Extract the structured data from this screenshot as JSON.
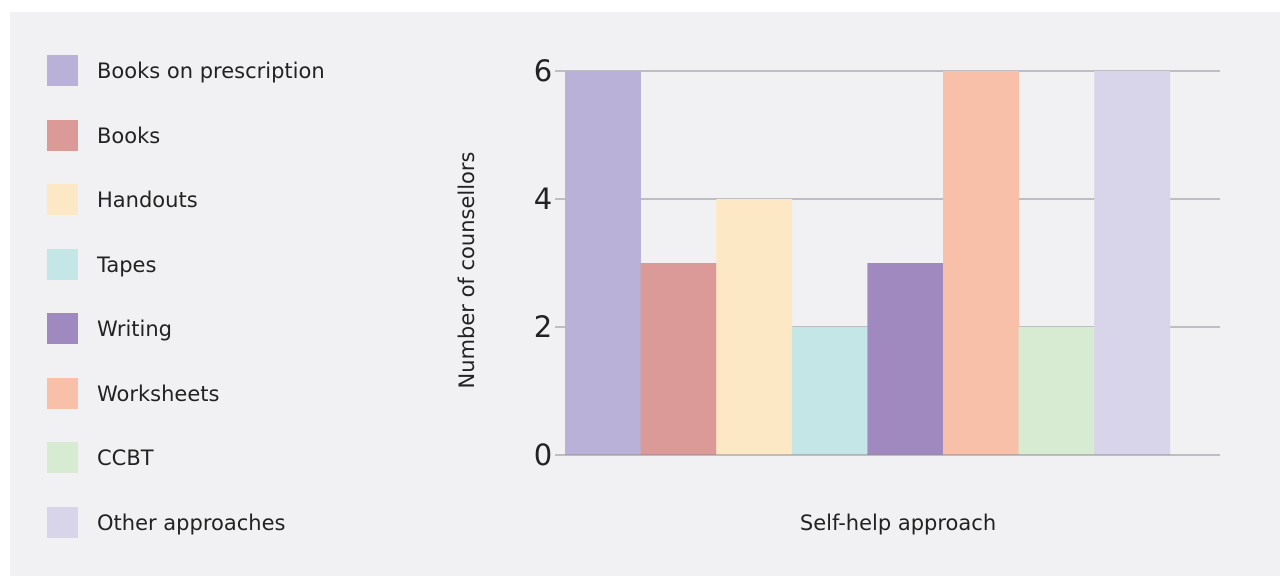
{
  "chart_data": {
    "type": "bar",
    "title": "",
    "xlabel": "Self-help approach",
    "ylabel": "Number of counsellors",
    "ylim": [
      0,
      6
    ],
    "yticks": [
      0,
      2,
      4,
      6
    ],
    "grid": true,
    "legend_position": "left",
    "categories": [
      "Books on prescription",
      "Books",
      "Handouts",
      "Tapes",
      "Writing",
      "Worksheets",
      "CCBT",
      "Other approaches"
    ],
    "values": [
      6,
      3,
      4,
      2,
      3,
      6,
      2,
      6
    ],
    "colors": [
      "#b9b1d8",
      "#db9997",
      "#fde8c6",
      "#c5e6e6",
      "#a089be",
      "#f8bfa9",
      "#d7ebd3",
      "#d8d5ea"
    ]
  }
}
